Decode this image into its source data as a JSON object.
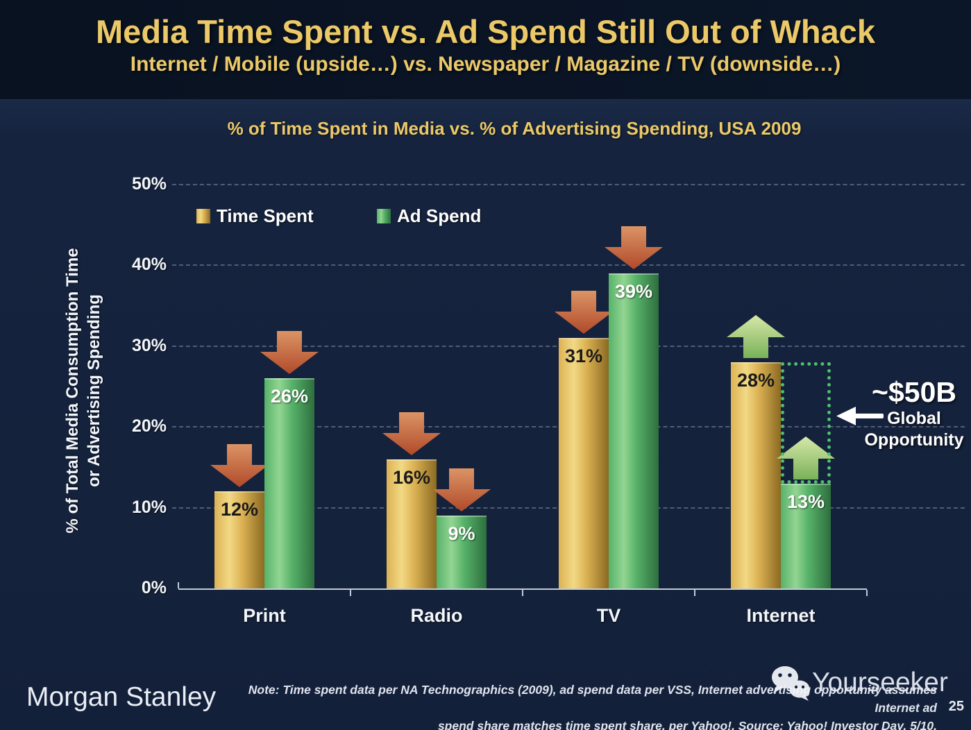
{
  "header": {
    "title": "Media Time Spent vs. Ad Spend Still Out of Whack",
    "subtitle": "Internet / Mobile (upside…) vs. Newspaper / Magazine / TV (downside…)"
  },
  "chart_data": {
    "type": "bar",
    "title": "% of Time Spent in Media vs. % of Advertising Spending, USA 2009",
    "categories": [
      "Print",
      "Radio",
      "TV",
      "Internet"
    ],
    "series": [
      {
        "name": "Time Spent",
        "values": [
          12,
          16,
          31,
          28
        ],
        "color_key": "gold",
        "value_label_color": "#1a1a1a"
      },
      {
        "name": "Ad Spend",
        "values": [
          26,
          9,
          39,
          13
        ],
        "color_key": "green",
        "value_label_color": "#ffffff"
      }
    ],
    "unit": "%",
    "ylabel_lines": [
      "% of Total Media Consumption Time",
      "or Advertising Spending"
    ],
    "yticks": [
      0,
      10,
      20,
      30,
      40,
      50
    ],
    "ylim": [
      0,
      50
    ],
    "grid": "dashed-horizontal",
    "legend_position": "top-left-inside-plot",
    "trend_arrows": [
      [
        "down",
        "down"
      ],
      [
        "down",
        "down"
      ],
      [
        "down",
        "down"
      ],
      [
        "up",
        "up"
      ]
    ],
    "annotation": {
      "value": "~$50B",
      "label_lines": [
        "Global",
        "Opportunity"
      ],
      "box": {
        "category_index": 3,
        "top_value": 28,
        "bottom_value": 13
      }
    }
  },
  "colors": {
    "background_header": "#0a1424",
    "background_body": "#15223c",
    "title_gold": "#ecc968",
    "gold": {
      "light": "#f2d985",
      "mid": "#dcb254",
      "dark": "#8a6a22"
    },
    "green": {
      "light": "#93d593",
      "mid": "#57b269",
      "dark": "#2d6e3e"
    },
    "arrow_down": {
      "light": "#dc9465",
      "dark": "#b04a2a"
    },
    "arrow_up": {
      "light": "#d7e8a8",
      "dark": "#79b158"
    },
    "dotted_box": "#4fbf6e",
    "axis_text": "#f3f6fa"
  },
  "footer": {
    "brand": "Morgan Stanley",
    "note_line1": "Note: Time spent data per NA Technographics (2009), ad spend data per VSS, Internet advertising opportunity assumes Internet ad",
    "note_line2": "spend share matches time spent share, per Yahoo!. Source: Yahoo! Investor Day, 5/10.",
    "page_number": "25",
    "watermark": "Yourseeker"
  }
}
